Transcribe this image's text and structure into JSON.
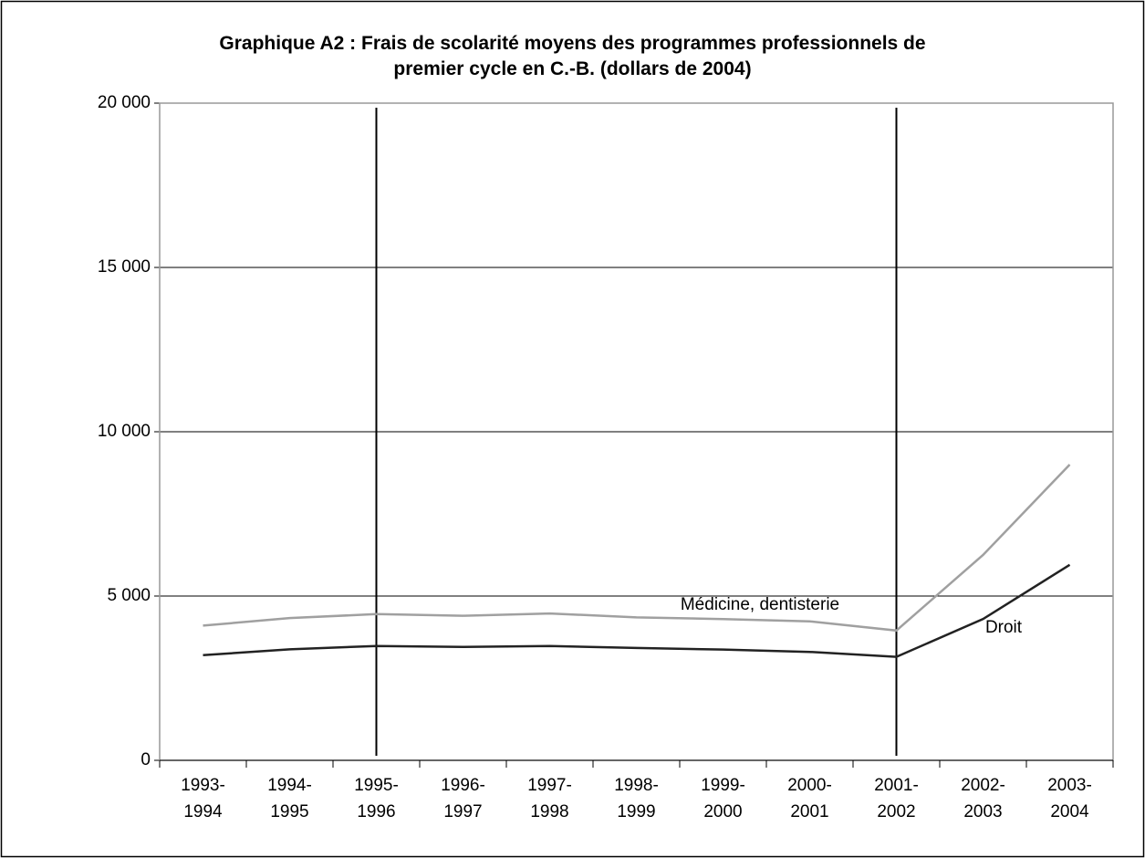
{
  "chart_data": {
    "type": "line",
    "title": "Graphique A2 : Frais de scolarité moyens des programmes professionnels de\npremier cycle en C.-B. (dollars de 2004)",
    "categories": [
      "1993-1994",
      "1994-1995",
      "1995-1996",
      "1996-1997",
      "1997-1998",
      "1998-1999",
      "1999-2000",
      "2000-2001",
      "2001-2002",
      "2002-2003",
      "2003-2004"
    ],
    "series": [
      {
        "name": "Médicine, dentisterie",
        "color": "#a0a0a0",
        "values": [
          4100,
          4330,
          4450,
          4400,
          4470,
          4350,
          4300,
          4230,
          3950,
          6250,
          9000
        ]
      },
      {
        "name": "Droit",
        "color": "#222222",
        "values": [
          3200,
          3380,
          3480,
          3450,
          3480,
          3420,
          3370,
          3300,
          3150,
          4300,
          5950
        ]
      }
    ],
    "vlines": [
      "1995-1996",
      "2001-2002"
    ],
    "ylim": [
      0,
      20000
    ],
    "yticks": [
      {
        "value": 0,
        "label": "0"
      },
      {
        "value": 5000,
        "label": "5 000"
      },
      {
        "value": 10000,
        "label": "10 000"
      },
      {
        "value": 15000,
        "label": "15 000"
      },
      {
        "value": 20000,
        "label": "20 000"
      }
    ],
    "grid": true
  }
}
